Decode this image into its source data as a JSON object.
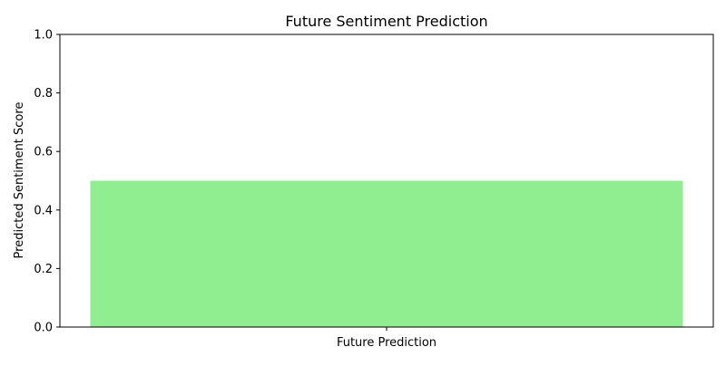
{
  "chart_data": {
    "type": "bar",
    "title": "Future Sentiment Prediction",
    "xlabel": "",
    "ylabel": "Predicted Sentiment Score",
    "categories": [
      "Future Prediction"
    ],
    "values": [
      0.5
    ],
    "ylim": [
      0,
      1
    ],
    "yticks": [
      "0.0",
      "0.2",
      "0.4",
      "0.6",
      "0.8",
      "1.0"
    ],
    "bar_color": "#90ee90",
    "grid": false,
    "legend": "none"
  }
}
